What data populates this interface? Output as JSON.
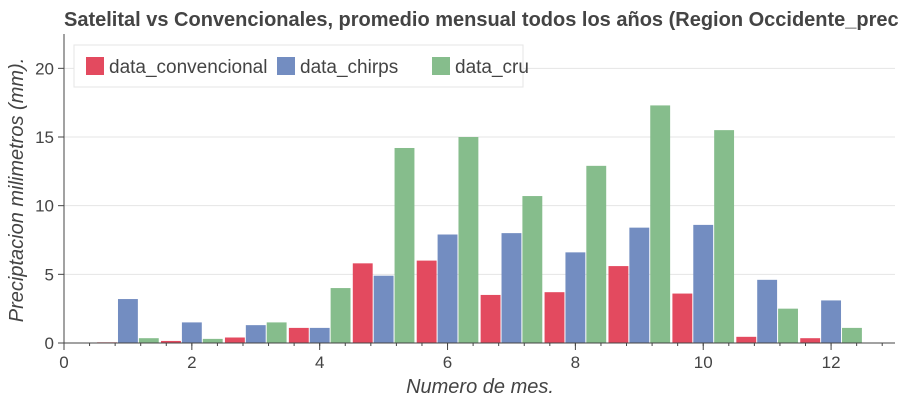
{
  "chart_data": {
    "type": "bar",
    "title": "Satelital vs Convencionales, promedio mensual todos los años (Region Occidente_prec",
    "xlabel": "Numero de mes.",
    "ylabel": "Preciptacion milimetros (mm).",
    "categories": [
      1,
      2,
      3,
      4,
      5,
      6,
      7,
      8,
      9,
      10,
      11,
      12
    ],
    "series": [
      {
        "name": "data_convencional",
        "color": "#e34a5f",
        "values": [
          0.05,
          0.15,
          0.4,
          1.1,
          5.8,
          6.0,
          3.5,
          3.7,
          5.6,
          3.6,
          0.45,
          0.35
        ]
      },
      {
        "name": "data_chirps",
        "color": "#738dc1",
        "values": [
          3.2,
          1.5,
          1.3,
          1.1,
          4.9,
          7.9,
          8.0,
          6.6,
          8.4,
          8.6,
          4.6,
          3.1
        ]
      },
      {
        "name": "data_cru",
        "color": "#86bd8c",
        "values": [
          0.35,
          0.3,
          1.5,
          4.0,
          14.2,
          15.0,
          10.7,
          12.9,
          17.3,
          15.5,
          2.5,
          1.1
        ]
      }
    ],
    "xlim": [
      0,
      13
    ],
    "ylim": [
      0,
      22.5
    ],
    "xticks": [
      0,
      2,
      4,
      6,
      8,
      10,
      12
    ],
    "yticks": [
      0,
      5,
      10,
      15,
      20
    ],
    "grid": true,
    "legend_position": "top-left"
  }
}
